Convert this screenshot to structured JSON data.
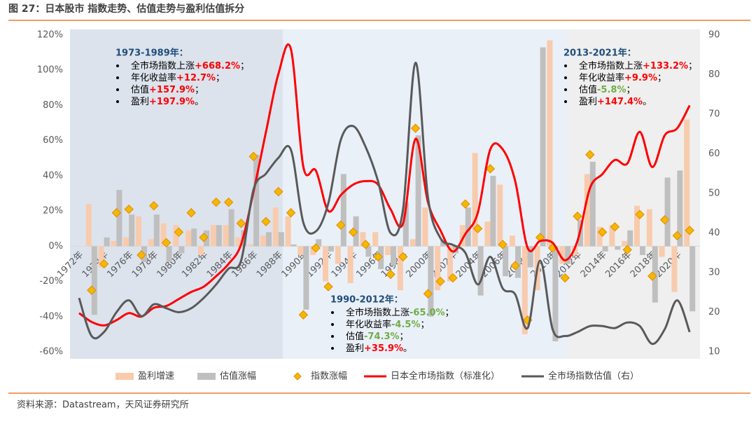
{
  "title": "图 27：日本股市 指数走势、估值走势与盈利估值拆分",
  "source": "资料来源：Datastream，天风证券研究所",
  "chart_data": {
    "type": "combo",
    "categories": [
      "1972年",
      null,
      "1974年",
      null,
      "1976年",
      null,
      "1978年",
      null,
      "1980年",
      null,
      "1982年",
      null,
      "1984年",
      null,
      "1986年",
      null,
      "1988年",
      null,
      "1990年",
      null,
      "1992年",
      null,
      "1994年",
      null,
      "1996年",
      null,
      "1998年",
      null,
      "2000年",
      null,
      "2002年",
      null,
      "2004年",
      null,
      "2006年",
      null,
      "2008年",
      null,
      "2010年",
      null,
      "2012年",
      null,
      "2014年",
      null,
      "2016年",
      null,
      "2018年",
      null,
      "2020年",
      null
    ],
    "ylim": [
      -60,
      120
    ],
    "yticks": [
      {
        "value": -60,
        "label": "-60%"
      },
      {
        "value": -40,
        "label": "-40%"
      },
      {
        "value": -20,
        "label": "-20%"
      },
      {
        "value": 0,
        "label": "0%"
      },
      {
        "value": 20,
        "label": "20%"
      },
      {
        "value": 40,
        "label": "40%"
      },
      {
        "value": 60,
        "label": "60%"
      },
      {
        "value": 80,
        "label": "80%"
      },
      {
        "value": 100,
        "label": "100%"
      },
      {
        "value": 120,
        "label": "120%"
      }
    ],
    "y2lim": [
      10,
      90
    ],
    "y2ticks": [
      10,
      20,
      30,
      40,
      50,
      60,
      70,
      80,
      90
    ],
    "series": [
      {
        "name": "盈利增速",
        "type": "bar",
        "color": "#f8cbad",
        "values": [
          null,
          24,
          -12,
          3,
          5,
          17,
          4,
          13,
          12,
          9,
          -5,
          12,
          12,
          5,
          1,
          6,
          22,
          17,
          -5,
          -5,
          -20,
          -10,
          -21,
          8,
          8,
          -5,
          -25,
          4,
          22,
          -25,
          -20,
          12,
          53,
          14,
          35,
          6,
          -50,
          -25,
          117,
          -10,
          -5,
          41,
          11,
          12,
          3,
          23,
          21,
          -6,
          -26,
          72
        ]
      },
      {
        "name": "估值涨幅",
        "type": "bar",
        "color": "#bfbfbf",
        "values": [
          null,
          -39,
          5,
          32,
          18,
          -9,
          18,
          -9,
          -4,
          10,
          9,
          12,
          21,
          9,
          52,
          8,
          8,
          1,
          -36,
          4,
          -3,
          41,
          17,
          -6,
          -13,
          -11,
          25,
          63,
          -40,
          4,
          -4,
          22,
          -28,
          40,
          -17,
          -18,
          -12,
          113,
          -54,
          -10,
          15,
          48,
          -3,
          -2,
          9,
          -5,
          -32,
          39,
          43,
          -37
        ]
      },
      {
        "name": "指数涨幅",
        "type": "scatter",
        "color": "#f5b800",
        "values": [
          null,
          -25,
          -10,
          19,
          21,
          -5,
          23,
          2,
          8,
          19,
          5,
          25,
          25,
          13,
          51,
          14,
          31,
          19,
          -39,
          -1,
          -23,
          12,
          8,
          1,
          -6,
          -16,
          -6,
          67,
          -27,
          -20,
          -18,
          24,
          10,
          44,
          1,
          -11,
          -42,
          5,
          -1,
          -18,
          17,
          52,
          8,
          11,
          -2,
          18,
          -17,
          15,
          6,
          9
        ]
      },
      {
        "name": "日本全市场指数（标准化）",
        "type": "line",
        "color": "#ff0000",
        "values": [
          -38,
          -43,
          -45,
          -42,
          -38,
          -40,
          -35,
          -34,
          -30,
          -26,
          -23,
          -17,
          -10,
          1,
          31,
          65,
          98,
          112,
          45,
          43,
          20,
          29,
          35,
          37,
          35,
          21,
          13,
          61,
          25,
          9,
          -3,
          7,
          19,
          55,
          55,
          37,
          -1,
          3,
          2,
          -8,
          3,
          33,
          41,
          49,
          47,
          65,
          45,
          63,
          67,
          80
        ]
      },
      {
        "name": "全市场指数估值（右）",
        "type": "line",
        "axis": "y2",
        "color": "#595959",
        "values": [
          23.6,
          14,
          15,
          20,
          23,
          19,
          22,
          21,
          20,
          21,
          23.6,
          27,
          31,
          33,
          51,
          55,
          59,
          61,
          42.6,
          40.4,
          47.5,
          63.5,
          67,
          61.7,
          53,
          40,
          46,
          83,
          49,
          38.7,
          37,
          35,
          27,
          34,
          26,
          24.5,
          16,
          33,
          15.7,
          14,
          15,
          16.5,
          16.5,
          16,
          17.4,
          16.5,
          12,
          15.7,
          23,
          15
        ]
      }
    ],
    "annotations": [
      {
        "title": "1973-1989年：",
        "items": [
          {
            "text": "全市场指数上涨",
            "value": "+668.2%",
            "color": "#ff0000",
            "end": "；"
          },
          {
            "text": "年化收益率",
            "value": "+12.7%",
            "color": "#ff0000",
            "end": "；"
          },
          {
            "text": "估值",
            "value": "+157.9%",
            "color": "#ff0000",
            "end": "；"
          },
          {
            "text": "盈利",
            "value": "+197.9%",
            "color": "#ff0000",
            "end": "。"
          }
        ]
      },
      {
        "title": "1990-2012年：",
        "items": [
          {
            "text": "全市场指数上涨",
            "value": "-65.0%",
            "color": "#70ad47",
            "end": "；"
          },
          {
            "text": "年化收益率",
            "value": "-4.5%",
            "color": "#70ad47",
            "end": "；"
          },
          {
            "text": "估值",
            "value": "-74.3%",
            "color": "#70ad47",
            "end": "；"
          },
          {
            "text": "盈利",
            "value": "+35.9%",
            "color": "#ff0000",
            "end": "。"
          }
        ]
      },
      {
        "title": "2013-2021年：",
        "items": [
          {
            "text": "全市场指数上涨",
            "value": "+133.2%",
            "color": "#ff0000",
            "end": "；"
          },
          {
            "text": "年化收益率",
            "value": "+9.9%",
            "color": "#ff0000",
            "end": "；"
          },
          {
            "text": "估值",
            "value": "-5.8%",
            "color": "#70ad47",
            "end": "；"
          },
          {
            "text": "盈利",
            "value": "+147.4%",
            "color": "#ff0000",
            "end": "。"
          }
        ]
      }
    ]
  }
}
